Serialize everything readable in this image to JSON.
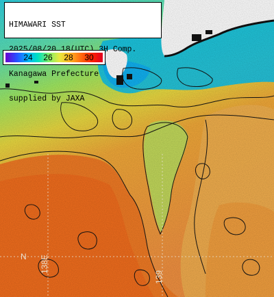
{
  "title": {
    "line1": "HIMAWARI SST",
    "line2": "2025/08/20 18(UTC) 3H Comp.",
    "line3": "Kanagawa Prefecture",
    "line4": "supplied by JAXA"
  },
  "colorbar": {
    "ticks": [
      "24",
      "26",
      "28",
      "30"
    ],
    "colors": [
      "#6a00d0",
      "#2a4cff",
      "#00b0ff",
      "#00e0c0",
      "#7ef06a",
      "#e8e840",
      "#ffb020",
      "#ff6a10",
      "#ff2000",
      "#e00020"
    ]
  },
  "grid_labels": {
    "lat": "N",
    "lon1": "138E",
    "lon2": "139"
  },
  "colors": {
    "land": "#ffffff",
    "cold_water": "#20c8e8",
    "mid_water": "#8ee870",
    "warm_water": "#f0b040",
    "hot_water": "#f07820",
    "contour": "#111111"
  }
}
